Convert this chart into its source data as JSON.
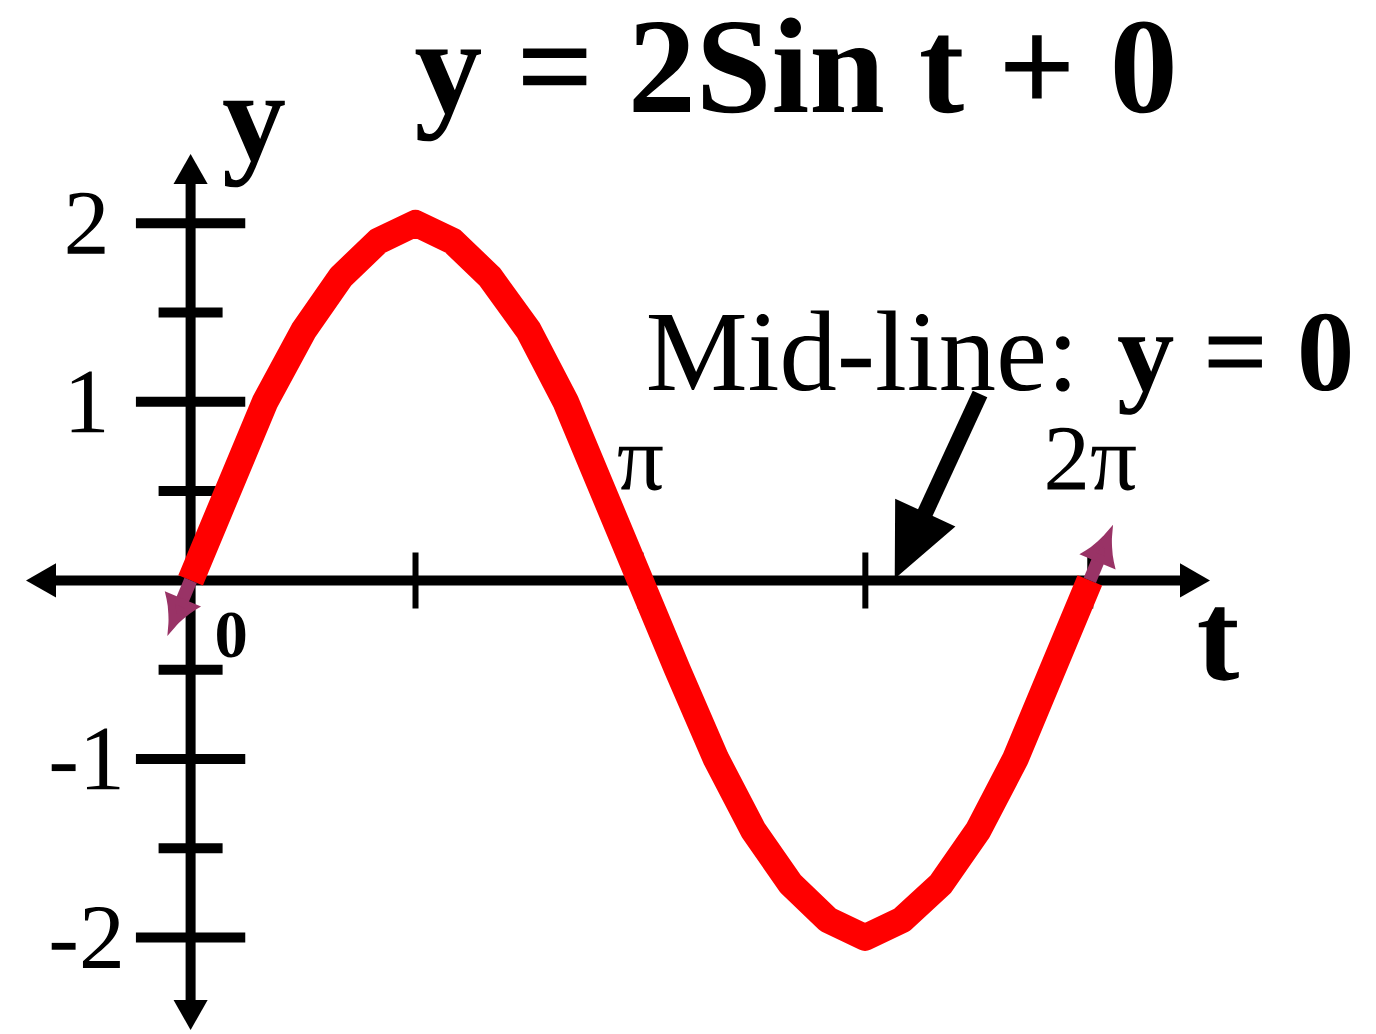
{
  "chart_data": {
    "type": "line",
    "title": "y = 2Sin t + 0",
    "xlabel": "t",
    "ylabel": "y",
    "x": [
      0,
      0.26,
      0.52,
      0.79,
      1.05,
      1.31,
      1.57,
      1.83,
      2.09,
      2.36,
      2.62,
      2.88,
      3.14,
      3.4,
      3.67,
      3.93,
      4.19,
      4.45,
      4.71,
      4.97,
      5.24,
      5.5,
      5.76,
      6.02,
      6.28
    ],
    "values": [
      0,
      0.5,
      1.0,
      1.4,
      1.7,
      1.9,
      2.0,
      1.9,
      1.7,
      1.4,
      1.0,
      0.5,
      0,
      -0.5,
      -1.0,
      -1.4,
      -1.7,
      -1.9,
      -2.0,
      -1.9,
      -1.7,
      -1.4,
      -1.0,
      -0.5,
      0
    ],
    "color": "#ff0000",
    "xlim": [
      -0.94,
      6.91
    ],
    "ylim": [
      -2.35,
      2.22
    ],
    "xticks": [
      {
        "value": 3.1416,
        "label": "π"
      },
      {
        "value": 6.2832,
        "label": "2π"
      }
    ],
    "yticks": [
      -2,
      -1,
      1,
      2
    ],
    "annotations": [
      "Mid-line: **y = 0**",
      "0"
    ]
  }
}
